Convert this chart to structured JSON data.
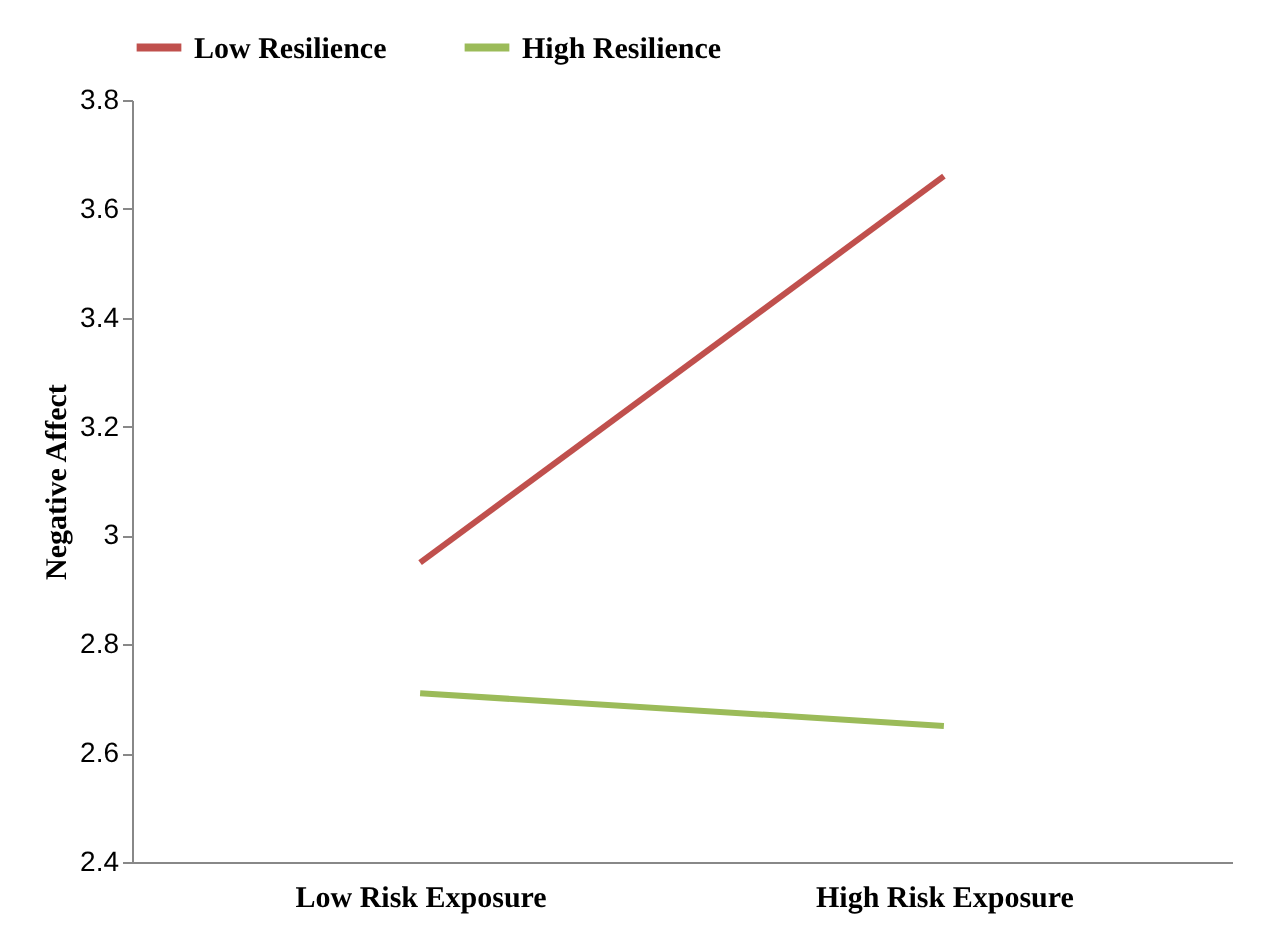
{
  "chart_data": {
    "type": "line",
    "ylabel": "Negative Affect",
    "categories": [
      "Low Risk Exposure",
      "High Risk Exposure"
    ],
    "series": [
      {
        "name": "Low Resilience",
        "color": "#c0504d",
        "values": [
          2.95,
          3.66
        ]
      },
      {
        "name": "High Resilience",
        "color": "#9bbb59",
        "values": [
          2.71,
          2.65
        ]
      }
    ],
    "ylim": [
      2.4,
      3.8
    ],
    "yticks": [
      2.4,
      2.6,
      2.8,
      3,
      3.2,
      3.4,
      3.6,
      3.8
    ],
    "grid": false,
    "legend": "top",
    "marker": "none",
    "line_style": "solid"
  }
}
